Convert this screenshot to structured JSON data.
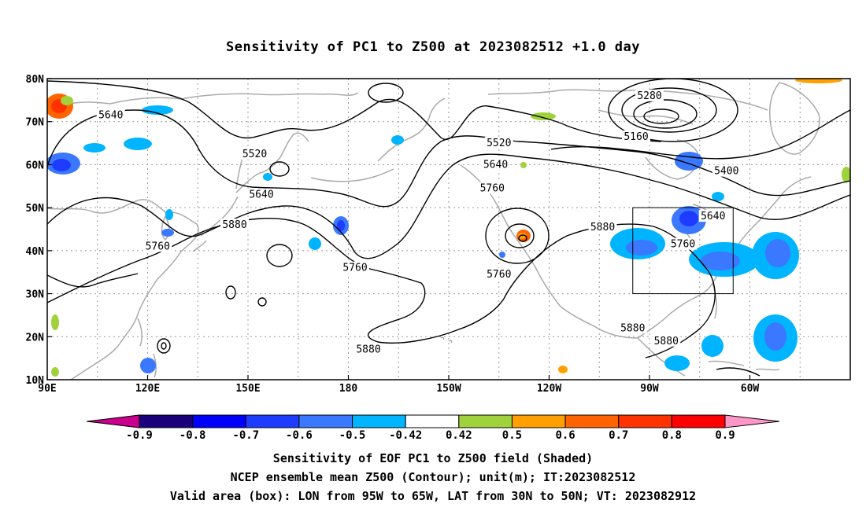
{
  "title": "Sensitivity of PC1 to Z500 at 2023082512 +1.0 day",
  "axes": {
    "lat_labels": [
      "80N",
      "70N",
      "60N",
      "50N",
      "40N",
      "30N",
      "20N",
      "10N"
    ],
    "lon_labels": [
      "90E",
      "120E",
      "150E",
      "180",
      "150W",
      "120W",
      "90W",
      "60W"
    ]
  },
  "contour_labels": [
    {
      "text": "5640",
      "lon": 109,
      "lat": 71.5
    },
    {
      "text": "5520",
      "lon": 152,
      "lat": 62.5
    },
    {
      "text": "5640",
      "lon": 154,
      "lat": 53
    },
    {
      "text": "5880",
      "lon": 146,
      "lat": 46
    },
    {
      "text": "5760",
      "lon": 123,
      "lat": 41
    },
    {
      "text": "5760",
      "lon": 182,
      "lat": 36
    },
    {
      "text": "5880",
      "lon": 186,
      "lat": 17
    },
    {
      "text": "5520",
      "lon": 225,
      "lat": 65
    },
    {
      "text": "5640",
      "lon": 224,
      "lat": 60
    },
    {
      "text": "5760",
      "lon": 223,
      "lat": 54.5
    },
    {
      "text": "5760",
      "lon": 225,
      "lat": 34.5
    },
    {
      "text": "5280",
      "lon": 270,
      "lat": 76
    },
    {
      "text": "5160",
      "lon": 266,
      "lat": 66.5
    },
    {
      "text": "5400",
      "lon": 293,
      "lat": 58.5
    },
    {
      "text": "5640",
      "lon": 289,
      "lat": 48
    },
    {
      "text": "5760",
      "lon": 280,
      "lat": 41.5
    },
    {
      "text": "5880",
      "lon": 256,
      "lat": 45.5
    },
    {
      "text": "5880",
      "lon": 265,
      "lat": 22
    },
    {
      "text": "5880",
      "lon": 275,
      "lat": 19
    }
  ],
  "colorbar": {
    "labels": [
      "-0.9",
      "-0.8",
      "-0.7",
      "-0.6",
      "-0.5",
      "-0.42",
      "0.42",
      "0.5",
      "0.6",
      "0.7",
      "0.8",
      "0.9"
    ],
    "colors": [
      "#1a007a",
      "#0000ff",
      "#1e3cff",
      "#3a78ff",
      "#00b4ff",
      "#ffffff",
      "#a0d23c",
      "#ffa000",
      "#ff6400",
      "#ff3200",
      "#ff0000"
    ],
    "low_end_color": "#c8008c",
    "high_end_color": "#ff96c8"
  },
  "captions": [
    "Sensitivity of EOF PC1 to Z500 field (Shaded)",
    "NCEP ensemble mean Z500 (Contour); unit(m); IT:2023082512",
    "Valid area (box): LON from 95W to 65W, LAT from 30N to 50N; VT: 2023082912"
  ]
}
